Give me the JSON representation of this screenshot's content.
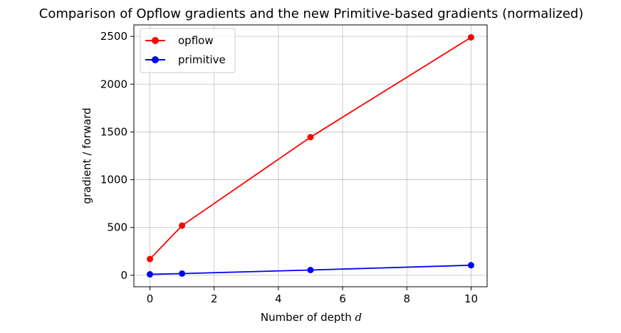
{
  "chart_data": {
    "type": "line",
    "title": "Comparison of Opflow gradients and the new Primitive-based gradients (normalized)",
    "xlabel_prefix": "Number of depth ",
    "xlabel_var": "d",
    "ylabel": "gradient / forward",
    "x": [
      0,
      1,
      5,
      10
    ],
    "xlim": [
      -0.5,
      10.5
    ],
    "ylim": [
      -120,
      2620
    ],
    "xticks": [
      0,
      2,
      4,
      6,
      8,
      10
    ],
    "yticks": [
      0,
      500,
      1000,
      1500,
      2000,
      2500
    ],
    "grid": true,
    "legend_position": "upper-left",
    "series": [
      {
        "name": "opflow",
        "color": "#ff0000",
        "values": [
          170,
          520,
          1445,
          2490
        ]
      },
      {
        "name": "primitive",
        "color": "#0000ff",
        "values": [
          10,
          18,
          55,
          105
        ]
      }
    ]
  }
}
